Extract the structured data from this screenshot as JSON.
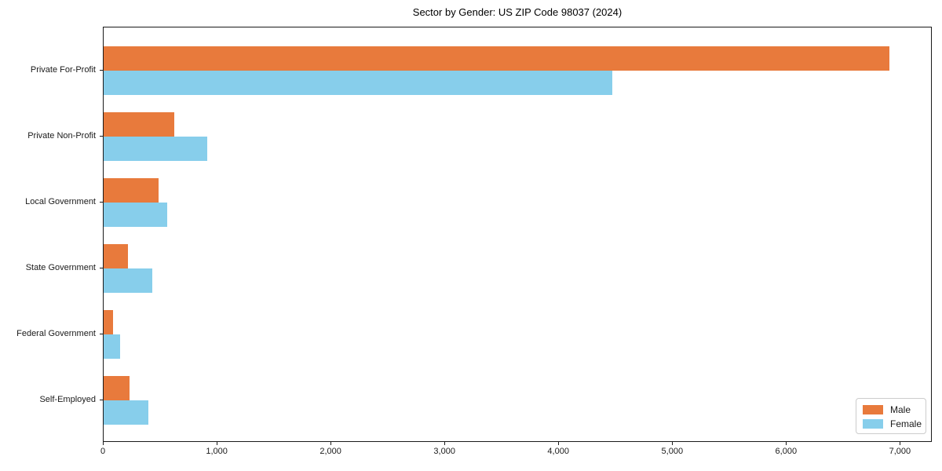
{
  "title": "Sector by Gender: US ZIP Code 98037 (2024)",
  "chart_data": {
    "type": "bar",
    "orientation": "horizontal",
    "title": "Sector by Gender: US ZIP Code 98037 (2024)",
    "categories": [
      "Private For-Profit",
      "Private Non-Profit",
      "Local Government",
      "State Government",
      "Federal Government",
      "Self-Employed"
    ],
    "series": [
      {
        "name": "Male",
        "color": "#E87A3C",
        "values": [
          6900,
          620,
          480,
          210,
          85,
          230
        ]
      },
      {
        "name": "Female",
        "color": "#87CEEB",
        "values": [
          4470,
          910,
          560,
          430,
          145,
          390
        ]
      }
    ],
    "xlabel": "",
    "ylabel": "",
    "xlim": [
      0,
      7280
    ],
    "xticks": [
      0,
      1000,
      2000,
      3000,
      4000,
      5000,
      6000,
      7000
    ],
    "xtick_labels": [
      "0",
      "1,000",
      "2,000",
      "3,000",
      "4,000",
      "5,000",
      "6,000",
      "7,000"
    ],
    "grid": false,
    "legend_position": "lower right",
    "frame": "full-box",
    "frame_color": "#1a1a1a",
    "background_color": "#ffffff"
  }
}
